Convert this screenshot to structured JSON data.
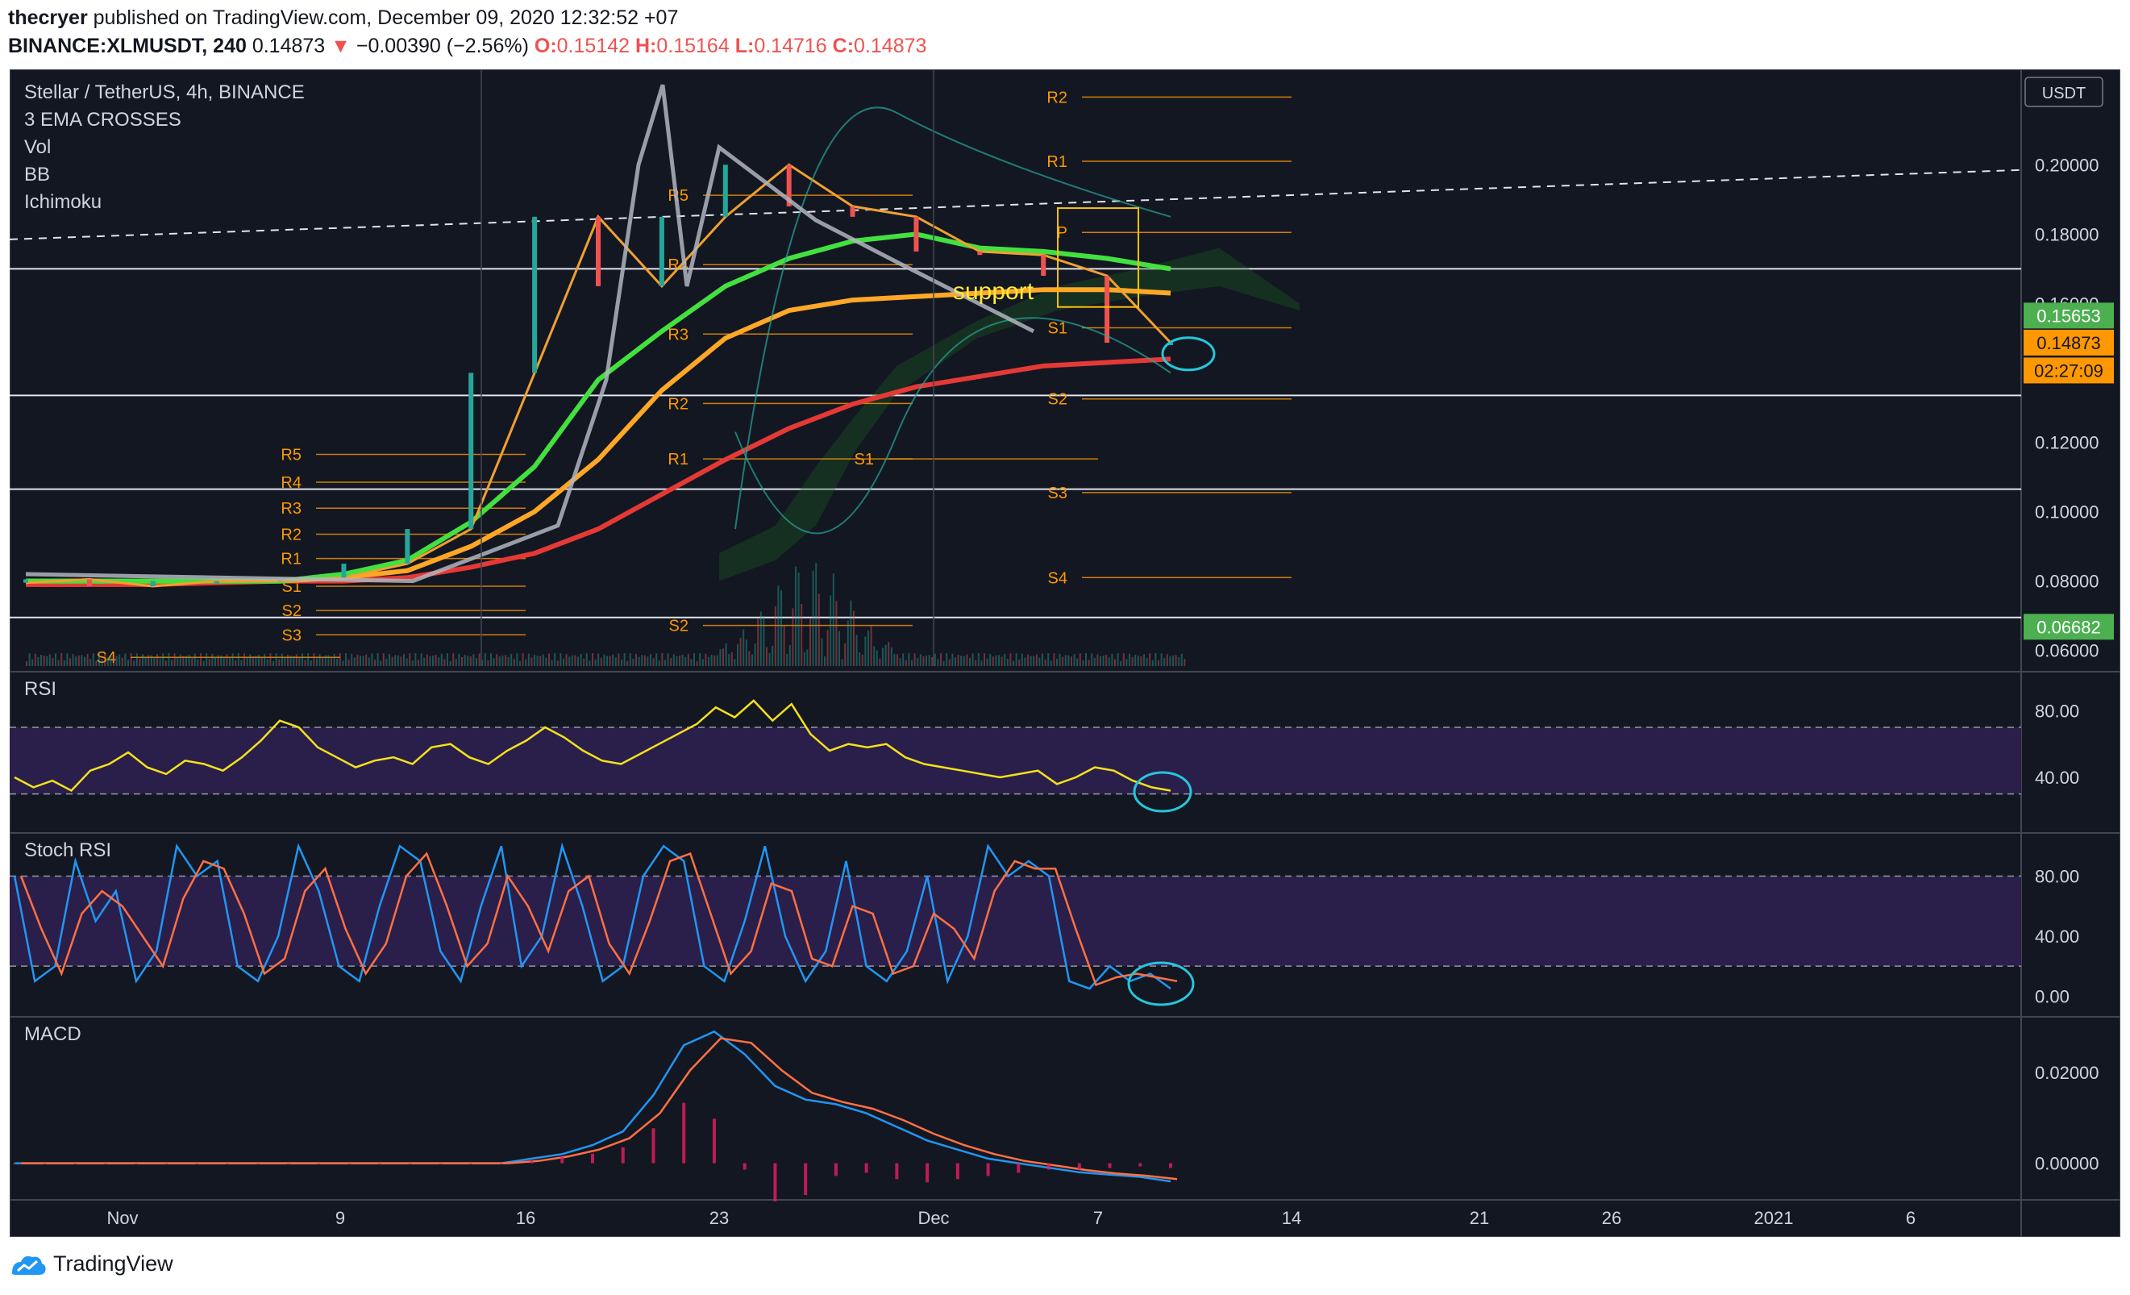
{
  "header": {
    "publisher": "thecryer",
    "published_text": "published on TradingView.com, December 09, 2020 12:32:52 +07",
    "symbol": "BINANCE:XLMUSDT, 240",
    "last": "0.14873",
    "change_arrow": "▼",
    "change": "−0.00390 (−2.56%)",
    "o_label": "O:",
    "o": "0.15142",
    "h_label": "H:",
    "h": "0.15164",
    "l_label": "L:",
    "l": "0.14716",
    "c_label": "C:",
    "c": "0.14873"
  },
  "legend": {
    "title": "Stellar / TetherUS, 4h, BINANCE",
    "indicators": [
      "3 EMA CROSSES",
      "Vol",
      "BB",
      "Ichimoku"
    ]
  },
  "footer": {
    "brand": "TradingView",
    "logo_icon": "tradingview-logo-icon"
  },
  "colors": {
    "bg": "#131722",
    "up": "#26a69a",
    "down": "#ef5350",
    "accent": "#2962ff",
    "orange": "#ff9800",
    "green_label": "#4caf50",
    "rsi_band": "#2a1f4a"
  },
  "chart_data": [
    {
      "type": "candlestick",
      "title": "Stellar / TetherUS, 4h, BINANCE",
      "currency_label": "USDT",
      "x_ticks": [
        "Nov",
        "9",
        "16",
        "23",
        "Dec",
        "7",
        "14",
        "21",
        "26",
        "2021",
        "6"
      ],
      "y_ticks": [
        "0.20000",
        "0.18000",
        "0.16000",
        "0.12000",
        "0.10000",
        "0.08000",
        "0.06000"
      ],
      "ylim": [
        0.0555,
        0.2275
      ],
      "price_labels": [
        {
          "label": "0.15653",
          "value": 0.15653,
          "color": "#4caf50"
        },
        {
          "label": "0.14873",
          "value": 0.14873,
          "color": "#ff9800"
        },
        {
          "label": "02:27:09",
          "value": 0.1407,
          "color": "#ff9800"
        },
        {
          "label": "0.06682",
          "value": 0.06682,
          "color": "#4caf50"
        }
      ],
      "series": [
        {
          "name": "close",
          "x": [
            "Oct 29",
            "Nov 1",
            "Nov 5",
            "Nov 9",
            "Nov 13",
            "Nov 17",
            "Nov 20",
            "Nov 22",
            "Nov 23",
            "Nov 24",
            "Nov 25",
            "Nov 27",
            "Nov 29",
            "Dec 1",
            "Dec 3",
            "Dec 5",
            "Dec 7",
            "Dec 8",
            "Dec 9"
          ],
          "values": [
            0.0795,
            0.0805,
            0.0785,
            0.08,
            0.08,
            0.081,
            0.085,
            0.095,
            0.14,
            0.185,
            0.165,
            0.185,
            0.2,
            0.188,
            0.185,
            0.175,
            0.174,
            0.168,
            0.1487
          ]
        },
        {
          "name": "EMA slow",
          "values": [
            0.079,
            0.079,
            0.079,
            0.0795,
            0.08,
            0.08,
            0.081,
            0.084,
            0.088,
            0.095,
            0.105,
            0.115,
            0.124,
            0.131,
            0.136,
            0.139,
            0.142,
            0.143,
            0.144
          ]
        },
        {
          "name": "EMA mid",
          "values": [
            0.08,
            0.08,
            0.08,
            0.08,
            0.08,
            0.081,
            0.083,
            0.09,
            0.1,
            0.115,
            0.135,
            0.15,
            0.158,
            0.161,
            0.162,
            0.163,
            0.164,
            0.164,
            0.163
          ]
        },
        {
          "name": "EMA fast",
          "values": [
            0.08,
            0.08,
            0.08,
            0.08,
            0.08,
            0.082,
            0.086,
            0.097,
            0.113,
            0.138,
            0.152,
            0.165,
            0.173,
            0.178,
            0.18,
            0.176,
            0.175,
            0.173,
            0.17
          ]
        }
      ],
      "pivot_labels": [
        "R5",
        "R4",
        "R3",
        "R2",
        "R1",
        "S1",
        "S2",
        "S3",
        "S4",
        "P"
      ],
      "annotations": [
        "support"
      ]
    },
    {
      "type": "line",
      "title": "RSI",
      "y_ticks": [
        "80.00",
        "40.00"
      ],
      "ylim": [
        10,
        100
      ],
      "band": [
        30,
        70
      ],
      "values": [
        40,
        34,
        38,
        32,
        44,
        48,
        55,
        46,
        42,
        50,
        48,
        44,
        52,
        62,
        74,
        70,
        58,
        52,
        46,
        50,
        52,
        48,
        58,
        60,
        52,
        48,
        56,
        62,
        70,
        64,
        56,
        50,
        48,
        54,
        60,
        66,
        72,
        82,
        76,
        86,
        74,
        84,
        66,
        56,
        60,
        58,
        60,
        52,
        48,
        46,
        44,
        42,
        40,
        42,
        44,
        36,
        40,
        46,
        44,
        38,
        34,
        32
      ]
    },
    {
      "type": "line",
      "title": "Stoch RSI",
      "y_ticks": [
        "80.00",
        "40.00",
        "0.00"
      ],
      "ylim": [
        -10,
        105
      ],
      "band": [
        20,
        80
      ],
      "values": [
        80,
        10,
        20,
        90,
        50,
        70,
        10,
        30,
        100,
        80,
        90,
        20,
        10,
        40,
        100,
        70,
        20,
        10,
        60,
        100,
        90,
        30,
        10,
        60,
        100,
        20,
        40,
        100,
        60,
        10,
        20,
        80,
        100,
        90,
        20,
        10,
        50,
        100,
        40,
        10,
        30,
        90,
        20,
        10,
        30,
        80,
        10,
        40,
        100,
        80,
        90,
        80,
        10,
        5,
        20,
        10,
        15,
        5
      ]
    },
    {
      "type": "line",
      "title": "MACD",
      "y_ticks": [
        "0.02000",
        "0.00000"
      ],
      "ylim": [
        -0.007,
        0.031
      ],
      "values": [
        0,
        0,
        0,
        0,
        0,
        0,
        0,
        0,
        0,
        0,
        0,
        0,
        0,
        0,
        0,
        0,
        0,
        0.001,
        0.002,
        0.004,
        0.007,
        0.015,
        0.026,
        0.029,
        0.024,
        0.017,
        0.014,
        0.013,
        0.011,
        0.008,
        0.005,
        0.003,
        0.001,
        0,
        -0.001,
        -0.002,
        -0.0025,
        -0.003,
        -0.004
      ]
    }
  ]
}
